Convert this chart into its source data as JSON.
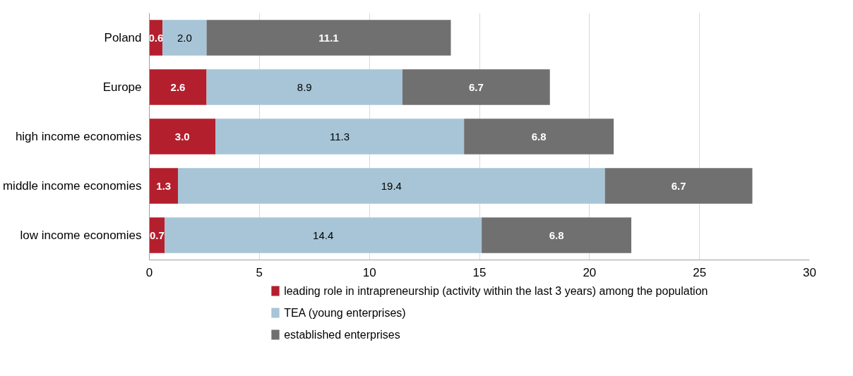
{
  "chart_data": {
    "type": "bar",
    "orientation": "horizontal",
    "stacked": true,
    "categories": [
      "Poland",
      "Europe",
      "high income economies",
      "middle income economies",
      "low income economies"
    ],
    "series": [
      {
        "name": "leading role in intrapreneurship (activity within the last 3 years) among the population",
        "color": "#b41f2e",
        "values": [
          0.6,
          2.6,
          3.0,
          1.3,
          0.7
        ],
        "value_labels": [
          "0.6",
          "2.6",
          "3.0",
          "1.3",
          "0.7"
        ]
      },
      {
        "name": "TEA (young enterprises)",
        "color": "#a7c5d6",
        "values": [
          2.0,
          8.9,
          11.3,
          19.4,
          14.4
        ],
        "value_labels": [
          "2.0",
          "8.9",
          "11.3",
          "19.4",
          "14.4"
        ]
      },
      {
        "name": "established enterprises",
        "color": "#707070",
        "values": [
          11.1,
          6.7,
          6.8,
          6.7,
          6.8
        ],
        "value_labels": [
          "11.1",
          "6.7",
          "6.8",
          "6.7",
          "6.8"
        ]
      }
    ],
    "xlim": [
      0,
      30
    ],
    "xticks": [
      0,
      5,
      10,
      15,
      20,
      25,
      30
    ],
    "grid": "x",
    "legend": "bottom"
  }
}
